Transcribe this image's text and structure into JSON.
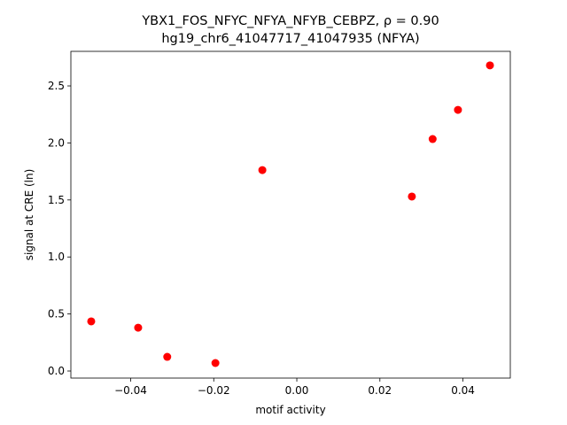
{
  "chart_data": {
    "type": "scatter",
    "title": "YBX1_FOS_NFYC_NFYA_NFYB_CEBPZ, ρ = 0.90",
    "subtitle": "hg19_chr6_41047717_41047935 (NFYA)",
    "x_label": "motif activity",
    "y_label": "signal at CRE (ln)",
    "color": "#ff0000",
    "x": [
      -0.0495,
      -0.0382,
      -0.0312,
      -0.0196,
      -0.0083,
      0.0277,
      0.0327,
      0.0388,
      0.0465
    ],
    "values": [
      0.435,
      0.38,
      0.124,
      0.07,
      1.762,
      1.53,
      2.034,
      2.29,
      2.68
    ],
    "xlim": [
      -0.0544,
      0.0514
    ],
    "ylim": [
      -0.062,
      2.803
    ],
    "xticks": [
      {
        "value": -0.04,
        "label": "−0.04"
      },
      {
        "value": -0.02,
        "label": "−0.02"
      },
      {
        "value": 0,
        "label": "0.00"
      },
      {
        "value": 0.02,
        "label": "0.02"
      },
      {
        "value": 0.04,
        "label": "0.04"
      }
    ],
    "yticks": [
      {
        "value": 0,
        "label": "0.0"
      },
      0.5,
      {
        "value": 1,
        "label": "1.0"
      },
      1.5,
      {
        "value": 2,
        "label": "2.0"
      },
      2.5
    ],
    "grid": false
  }
}
